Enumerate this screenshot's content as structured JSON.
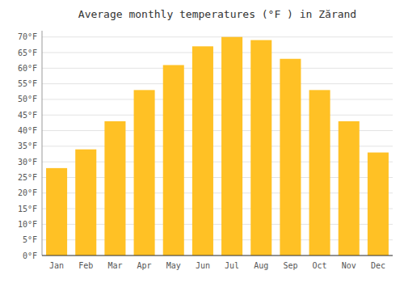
{
  "chart_data": {
    "type": "bar",
    "title": "Average monthly temperatures (°F ) in Zărand",
    "categories": [
      "Jan",
      "Feb",
      "Mar",
      "Apr",
      "May",
      "Jun",
      "Jul",
      "Aug",
      "Sep",
      "Oct",
      "Nov",
      "Dec"
    ],
    "values": [
      28,
      34,
      43,
      53,
      61,
      67,
      70,
      69,
      63,
      53,
      43,
      33
    ],
    "color": "#FFC125",
    "ylim": [
      0,
      72
    ],
    "yticks": [
      {
        "value": 0,
        "label": "0°F"
      },
      {
        "value": 5,
        "label": "5°F"
      },
      {
        "value": 10,
        "label": "10°F"
      },
      {
        "value": 15,
        "label": "15°F"
      },
      {
        "value": 20,
        "label": "20°F"
      },
      {
        "value": 25,
        "label": "25°F"
      },
      {
        "value": 30,
        "label": "30°F"
      },
      {
        "value": 35,
        "label": "35°F"
      },
      {
        "value": 40,
        "label": "40°F"
      },
      {
        "value": 45,
        "label": "45°F"
      },
      {
        "value": 50,
        "label": "50°F"
      },
      {
        "value": 55,
        "label": "55°F"
      },
      {
        "value": 60,
        "label": "60°F"
      },
      {
        "value": 65,
        "label": "65°F"
      },
      {
        "value": 70,
        "label": "70°F"
      }
    ],
    "grid": true
  }
}
